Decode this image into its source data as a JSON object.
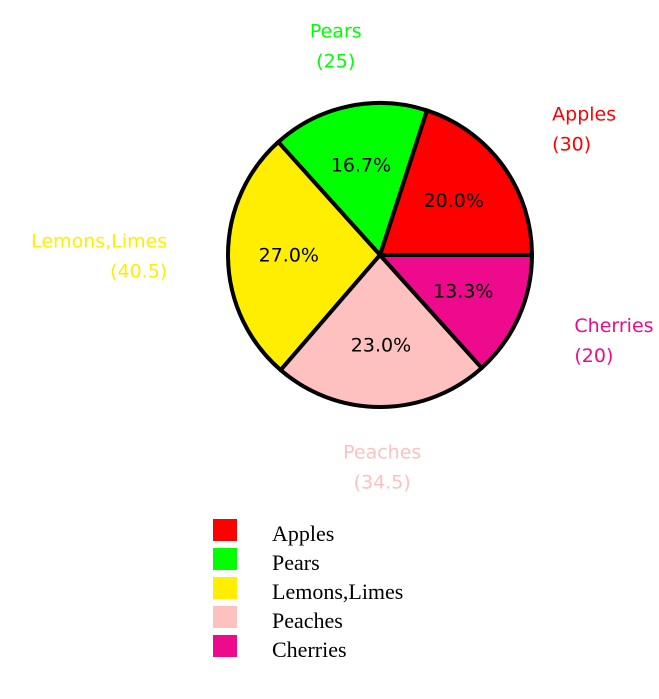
{
  "chart_data": {
    "type": "pie",
    "categories": [
      "Apples",
      "Pears",
      "Lemons,Limes",
      "Peaches",
      "Cherries"
    ],
    "values": [
      30,
      25,
      40.5,
      34.5,
      20
    ],
    "value_labels": [
      "(30)",
      "(25)",
      "(40.5)",
      "(34.5)",
      "(20)"
    ],
    "percentages": [
      20.0,
      16.7,
      27.0,
      23.0,
      13.3
    ],
    "percentage_labels": [
      "20.0%",
      "16.7%",
      "27.0%",
      "23.0%",
      "13.3%"
    ],
    "colors": [
      "#ff0000",
      "#00ff00",
      "#ffee00",
      "#ffc0c0",
      "#ee0a8c"
    ],
    "legend": "bottom"
  }
}
